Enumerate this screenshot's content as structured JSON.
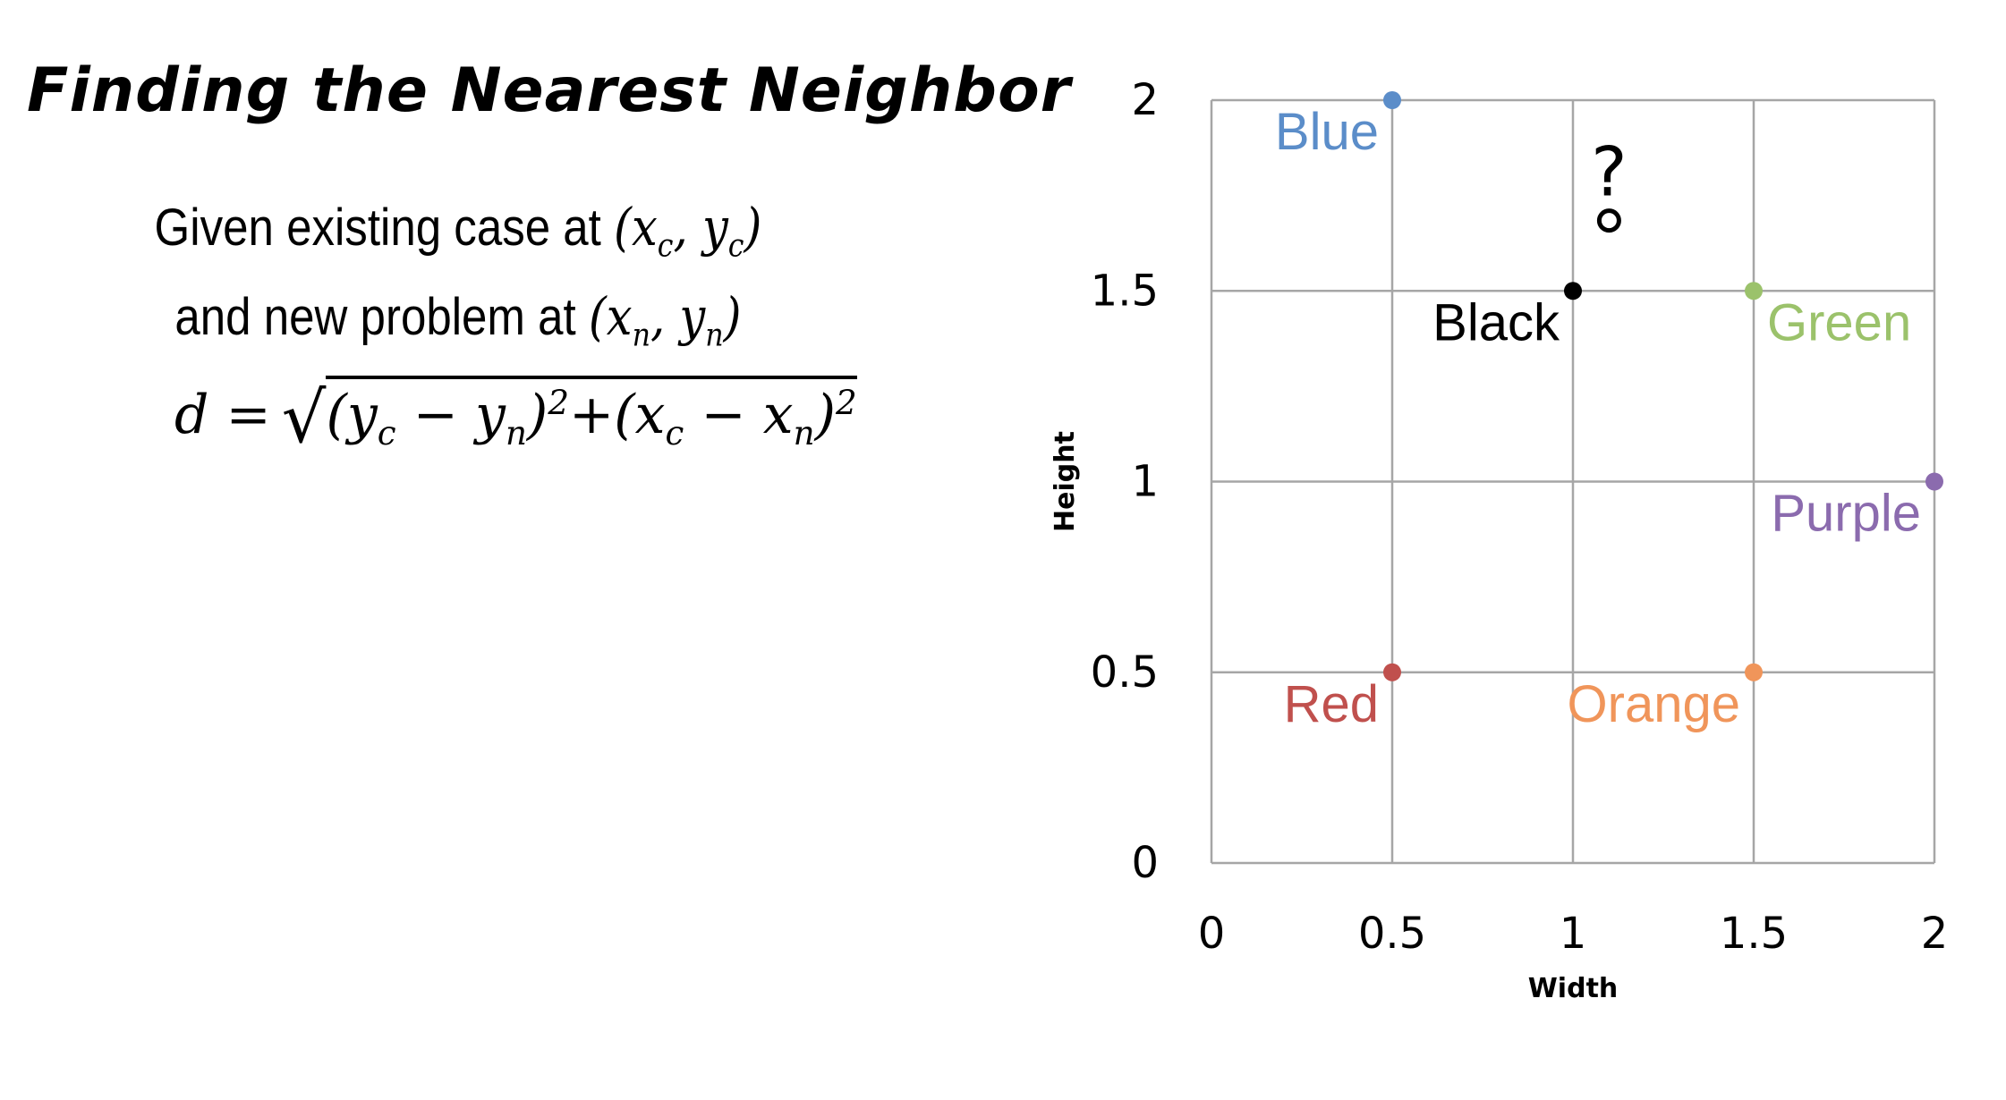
{
  "title": "Finding the Nearest Neighbor",
  "intro": {
    "line1_text": "Given existing case at ",
    "line1_math": [
      "(",
      "x",
      "c",
      ", ",
      "y",
      "c",
      ")"
    ],
    "line2_text": "and new problem at ",
    "line2_math": [
      "(",
      "x",
      "n",
      ", ",
      "y",
      "n",
      ")"
    ]
  },
  "formula": {
    "lhs": "d =",
    "radical": "√",
    "t1_open": "(y",
    "t1_sub1": "c",
    "t1_minus": " − y",
    "t1_sub2": "n",
    "t1_close": ")",
    "t1_exp": "2",
    "plus": "+",
    "t2_open": "(x",
    "t2_sub1": "c",
    "t2_minus": " − x",
    "t2_sub2": "n",
    "t2_close": ")",
    "t2_exp": "2"
  },
  "chart_data": {
    "type": "scatter",
    "xlabel": "Width",
    "ylabel": "Height",
    "xlim": [
      0,
      2
    ],
    "ylim": [
      0,
      2
    ],
    "xticks": [
      0,
      0.5,
      1,
      1.5,
      2
    ],
    "yticks": [
      0,
      0.5,
      1,
      1.5,
      2
    ],
    "grid": true,
    "points": [
      {
        "label": "Blue",
        "x": 0.5,
        "y": 2,
        "color": "#5B8DC9",
        "label_side": "left"
      },
      {
        "label": "Black",
        "x": 1,
        "y": 1.5,
        "color": "#000000",
        "label_side": "left"
      },
      {
        "label": "Green",
        "x": 1.5,
        "y": 1.5,
        "color": "#9BC26B",
        "label_side": "right"
      },
      {
        "label": "Purple",
        "x": 2,
        "y": 1,
        "color": "#8B6BAE",
        "label_side": "left"
      },
      {
        "label": "Red",
        "x": 0.5,
        "y": 0.5,
        "color": "#C0504D",
        "label_side": "left"
      },
      {
        "label": "Orange",
        "x": 1.5,
        "y": 0.5,
        "color": "#F0955A",
        "label_side": "left"
      }
    ],
    "annotation": {
      "text": "?",
      "x": 1.1,
      "y": 1.75
    }
  }
}
